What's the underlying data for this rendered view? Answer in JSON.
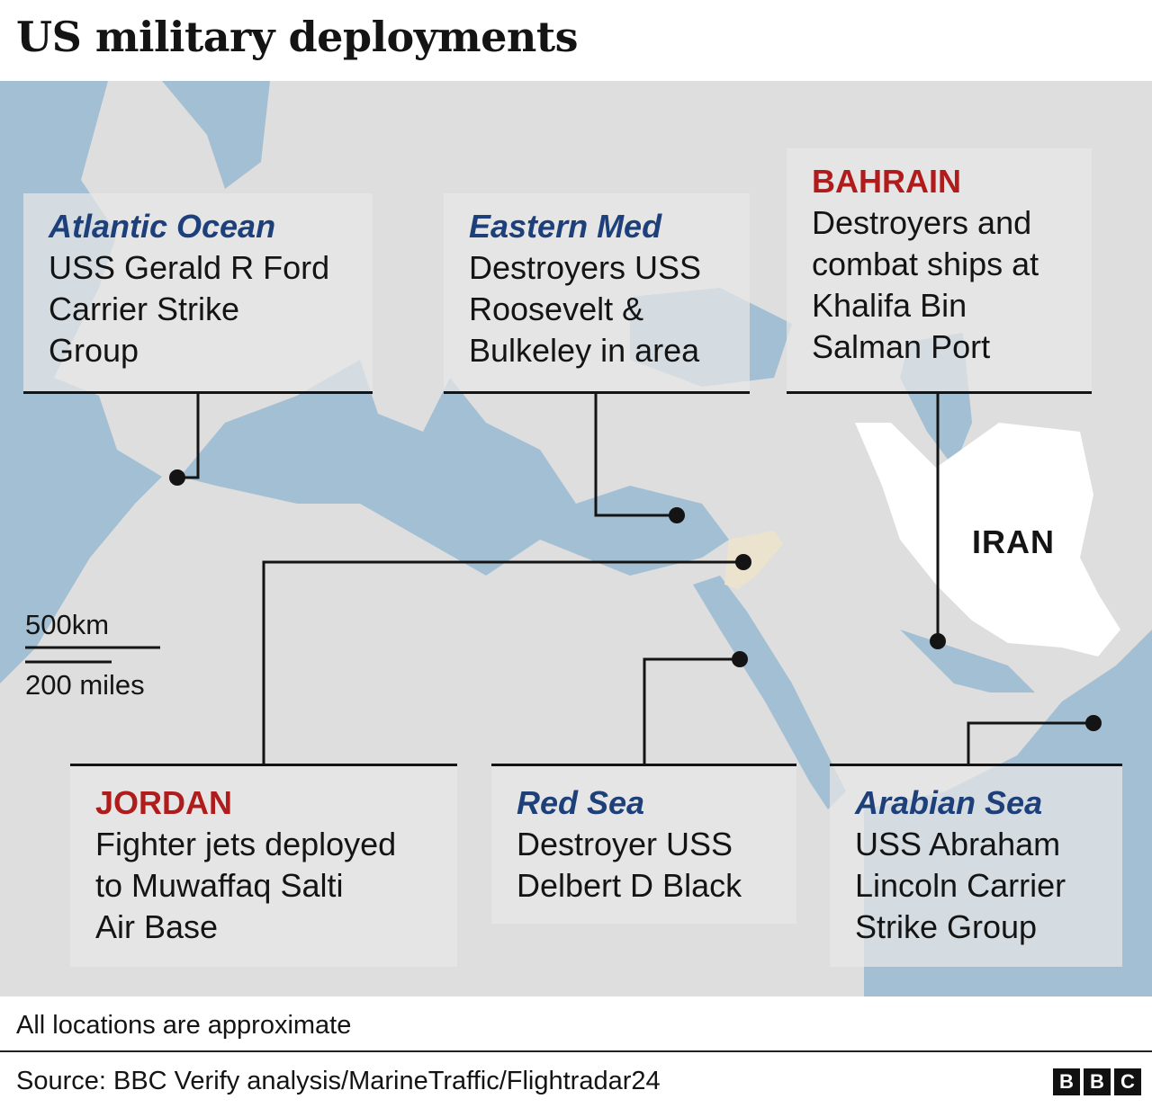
{
  "title": "US military deployments",
  "colors": {
    "sea": "#a3bfd4",
    "land": "#dedede",
    "highlight_country": "#ffffff",
    "jordan": "#ece3cf",
    "region_label": "#1d3f7a",
    "country_label": "#b01c1c"
  },
  "map": {
    "country_label": "IRAN",
    "scale": {
      "km": "500km",
      "miles": "200 miles"
    },
    "callouts": [
      {
        "heading": "Atlantic Ocean",
        "heading_style": "region",
        "lines": [
          "USS Gerald R Ford",
          "Carrier Strike",
          "Group"
        ]
      },
      {
        "heading": "Eastern Med",
        "heading_style": "region",
        "lines": [
          "Destroyers USS",
          "Roosevelt &",
          "Bulkeley in area"
        ]
      },
      {
        "heading": "BAHRAIN",
        "heading_style": "country",
        "lines": [
          "Destroyers and",
          "combat ships at",
          "Khalifa Bin",
          "Salman Port"
        ]
      },
      {
        "heading": "JORDAN",
        "heading_style": "country",
        "lines": [
          "Fighter jets deployed",
          "to Muwaffaq Salti",
          "Air Base"
        ]
      },
      {
        "heading": "Red Sea",
        "heading_style": "region",
        "lines": [
          "Destroyer USS",
          "Delbert D Black"
        ]
      },
      {
        "heading": "Arabian Sea",
        "heading_style": "region",
        "lines": [
          "USS Abraham",
          "Lincoln Carrier",
          "Strike Group"
        ]
      }
    ]
  },
  "footer": {
    "note": "All locations are approximate",
    "source": "Source: BBC Verify analysis/MarineTraffic/Flightradar24",
    "logo": [
      "B",
      "B",
      "C"
    ]
  }
}
